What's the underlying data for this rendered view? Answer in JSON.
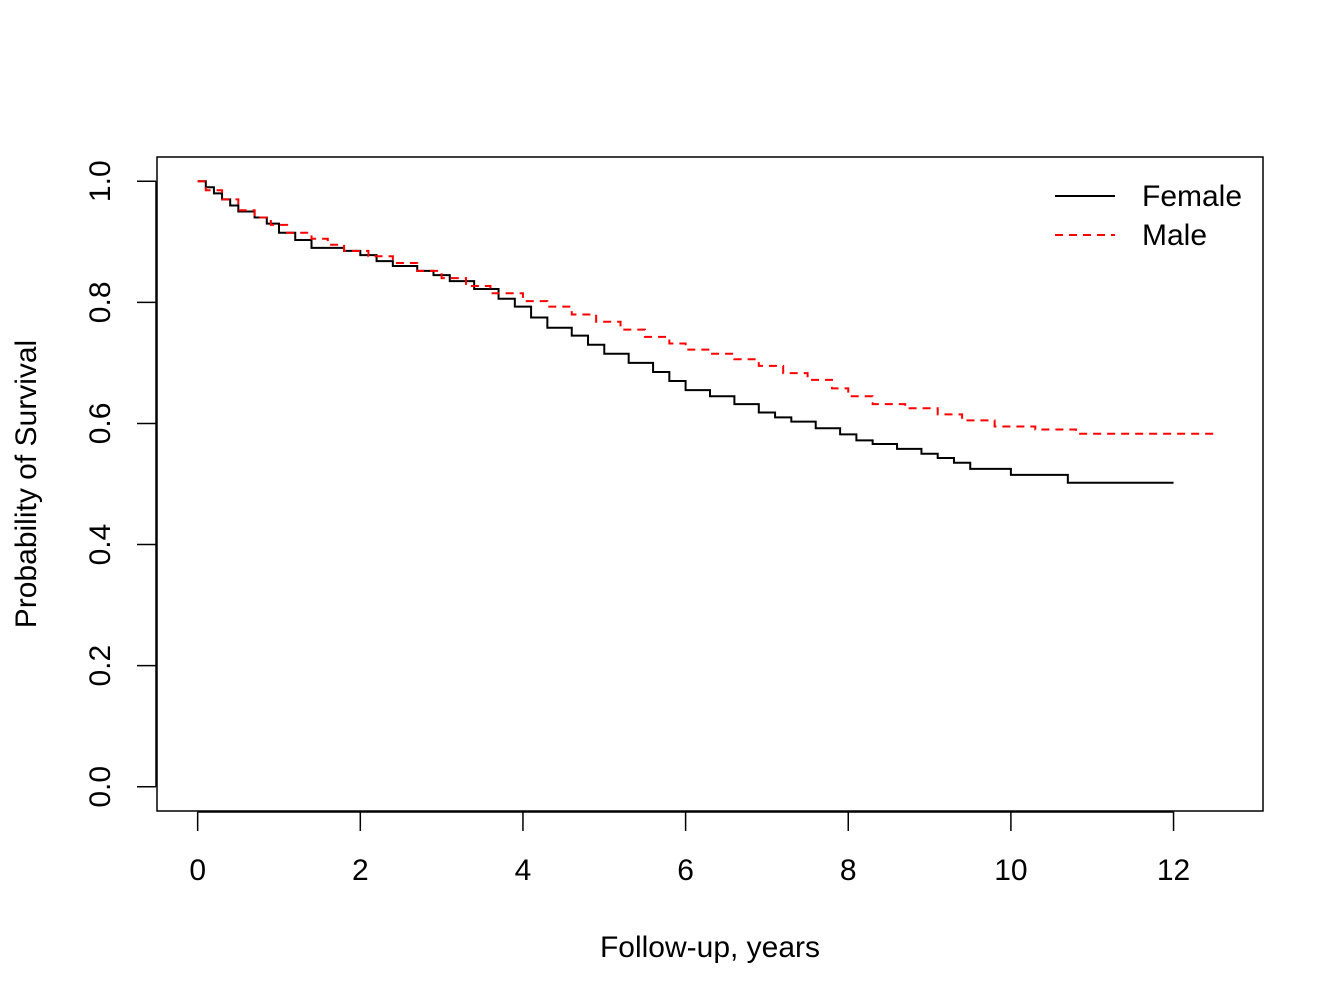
{
  "chart_data": {
    "type": "line",
    "step": true,
    "title": "",
    "xlabel": "Follow-up, years",
    "ylabel": "Probability of Survival",
    "xlim": [
      -0.5,
      13.1
    ],
    "ylim": [
      -0.04,
      1.04
    ],
    "x_ticks": [
      0,
      2,
      4,
      6,
      8,
      10,
      12
    ],
    "x_tick_labels": [
      "0",
      "2",
      "4",
      "6",
      "8",
      "10",
      "12"
    ],
    "y_ticks": [
      0,
      0.2,
      0.4,
      0.6,
      0.8,
      1.0
    ],
    "y_tick_labels": [
      "0.0",
      "0.2",
      "0.4",
      "0.6",
      "0.8",
      "1.0"
    ],
    "grid": false,
    "legend_position": "top-right",
    "series": [
      {
        "name": "Female",
        "color": "#000000",
        "dash": "solid",
        "points": [
          [
            0,
            1.0
          ],
          [
            0.1,
            0.99
          ],
          [
            0.2,
            0.98
          ],
          [
            0.3,
            0.97
          ],
          [
            0.4,
            0.96
          ],
          [
            0.5,
            0.95
          ],
          [
            0.7,
            0.94
          ],
          [
            0.85,
            0.93
          ],
          [
            1.0,
            0.915
          ],
          [
            1.2,
            0.903
          ],
          [
            1.4,
            0.89
          ],
          [
            1.8,
            0.885
          ],
          [
            2.0,
            0.878
          ],
          [
            2.2,
            0.868
          ],
          [
            2.4,
            0.86
          ],
          [
            2.7,
            0.852
          ],
          [
            2.9,
            0.845
          ],
          [
            3.1,
            0.835
          ],
          [
            3.4,
            0.822
          ],
          [
            3.7,
            0.806
          ],
          [
            3.9,
            0.793
          ],
          [
            4.1,
            0.775
          ],
          [
            4.3,
            0.758
          ],
          [
            4.6,
            0.745
          ],
          [
            4.8,
            0.73
          ],
          [
            5.0,
            0.715
          ],
          [
            5.3,
            0.7
          ],
          [
            5.6,
            0.685
          ],
          [
            5.8,
            0.67
          ],
          [
            6.0,
            0.655
          ],
          [
            6.3,
            0.645
          ],
          [
            6.6,
            0.632
          ],
          [
            6.9,
            0.618
          ],
          [
            7.1,
            0.61
          ],
          [
            7.3,
            0.603
          ],
          [
            7.6,
            0.592
          ],
          [
            7.9,
            0.582
          ],
          [
            8.1,
            0.572
          ],
          [
            8.3,
            0.566
          ],
          [
            8.6,
            0.558
          ],
          [
            8.9,
            0.55
          ],
          [
            9.1,
            0.543
          ],
          [
            9.3,
            0.535
          ],
          [
            9.5,
            0.525
          ],
          [
            10.0,
            0.515
          ],
          [
            10.7,
            0.502
          ],
          [
            12.0,
            0.502
          ]
        ]
      },
      {
        "name": "Male",
        "color": "#ff0000",
        "dash": "dashed",
        "points": [
          [
            0,
            1.0
          ],
          [
            0.1,
            0.985
          ],
          [
            0.3,
            0.97
          ],
          [
            0.5,
            0.952
          ],
          [
            0.7,
            0.94
          ],
          [
            0.9,
            0.928
          ],
          [
            1.1,
            0.915
          ],
          [
            1.4,
            0.905
          ],
          [
            1.6,
            0.895
          ],
          [
            1.8,
            0.885
          ],
          [
            2.1,
            0.876
          ],
          [
            2.4,
            0.865
          ],
          [
            2.7,
            0.852
          ],
          [
            3.0,
            0.84
          ],
          [
            3.3,
            0.827
          ],
          [
            3.6,
            0.815
          ],
          [
            4.0,
            0.802
          ],
          [
            4.3,
            0.793
          ],
          [
            4.6,
            0.78
          ],
          [
            4.9,
            0.768
          ],
          [
            5.2,
            0.755
          ],
          [
            5.5,
            0.743
          ],
          [
            5.8,
            0.732
          ],
          [
            6.0,
            0.722
          ],
          [
            6.3,
            0.715
          ],
          [
            6.6,
            0.706
          ],
          [
            6.9,
            0.695
          ],
          [
            7.2,
            0.683
          ],
          [
            7.5,
            0.672
          ],
          [
            7.8,
            0.658
          ],
          [
            8.0,
            0.645
          ],
          [
            8.3,
            0.632
          ],
          [
            8.7,
            0.625
          ],
          [
            9.1,
            0.615
          ],
          [
            9.4,
            0.605
          ],
          [
            9.8,
            0.595
          ],
          [
            10.3,
            0.59
          ],
          [
            10.8,
            0.583
          ],
          [
            12.5,
            0.583
          ]
        ]
      }
    ]
  }
}
